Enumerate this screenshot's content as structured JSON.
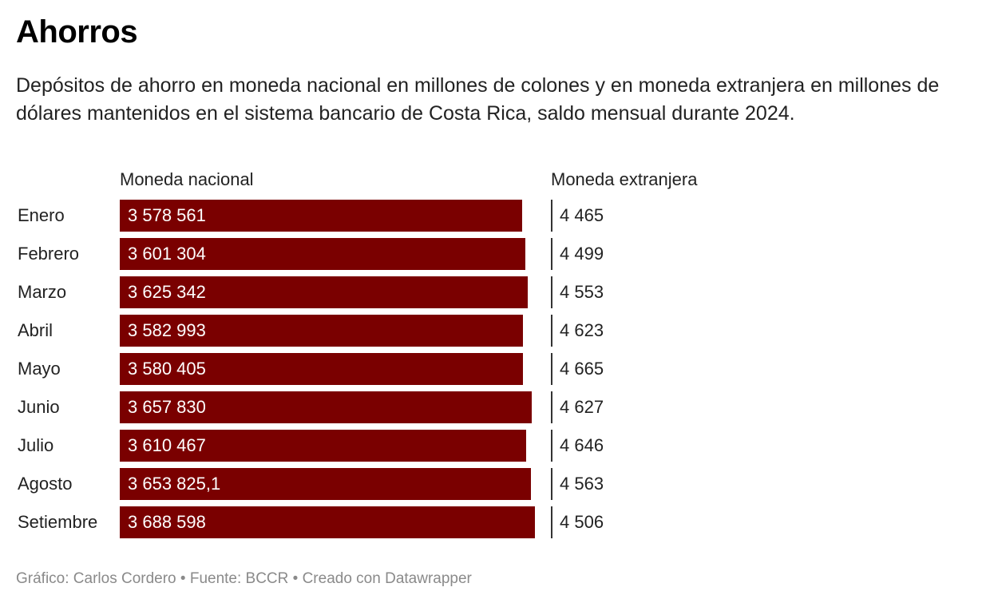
{
  "title": "Ahorros",
  "subtitle": "Depósitos de ahorro en moneda nacional en millones de colones y en moneda extranjera en millones de dólares mantenidos en el sistema bancario de Costa Rica, saldo mensual durante 2024.",
  "footer": "Gráfico: Carlos Cordero • Fuente: BCCR • Creado con Datawrapper",
  "colors": {
    "bar": "#7a0000",
    "tick": "#333333"
  },
  "chart_data": {
    "type": "bar",
    "orientation": "horizontal",
    "title": "Ahorros",
    "categories": [
      "Enero",
      "Febrero",
      "Marzo",
      "Abril",
      "Mayo",
      "Junio",
      "Julio",
      "Agosto",
      "Setiembre"
    ],
    "series": [
      {
        "name": "Moneda nacional",
        "values": [
          3578561,
          3601304,
          3625342,
          3582993,
          3580405,
          3657830,
          3610467,
          3653825.1,
          3688598
        ],
        "labels": [
          "3 578 561",
          "3 601 304",
          "3 625 342",
          "3 582 993",
          "3 580 405",
          "3 657 830",
          "3 610 467",
          "3 653 825,1",
          "3 688 598"
        ]
      },
      {
        "name": "Moneda extranjera",
        "values": [
          4465,
          4499,
          4553,
          4623,
          4665,
          4627,
          4646,
          4563,
          4506
        ],
        "labels": [
          "4 465",
          "4 499",
          "4 553",
          "4 623",
          "4 665",
          "4 627",
          "4 646",
          "4 563",
          "4 506"
        ]
      }
    ],
    "xlim": [
      0,
      3688598
    ]
  }
}
